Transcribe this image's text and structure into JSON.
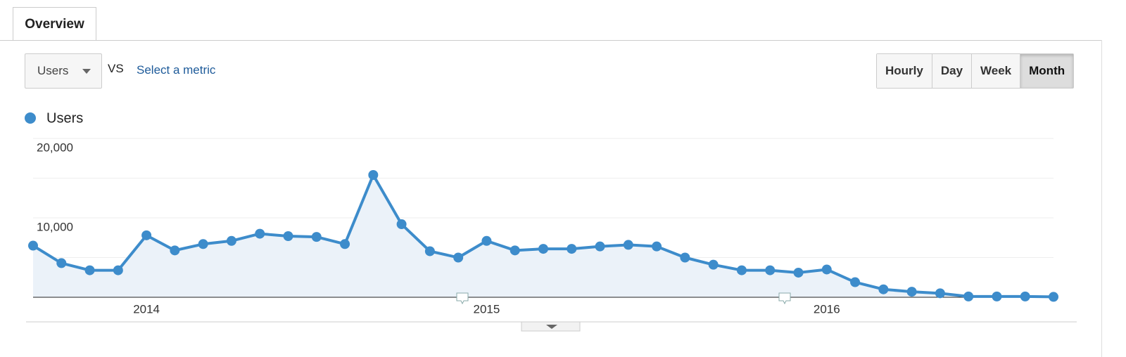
{
  "tabs": [
    "Overview"
  ],
  "metric_select": "Users",
  "vs_text": "VS",
  "select_metric": "Select a metric",
  "granularity": [
    "Hourly",
    "Day",
    "Week",
    "Month"
  ],
  "active_granularity_index": 3,
  "chart_data": {
    "type": "line",
    "categories": [
      null,
      null,
      null,
      null,
      "2014",
      null,
      null,
      null,
      null,
      null,
      null,
      null,
      null,
      null,
      null,
      null,
      "2015",
      null,
      null,
      null,
      null,
      null,
      null,
      null,
      null,
      null,
      null,
      null,
      "2016",
      null,
      null,
      null,
      null,
      null,
      null,
      null,
      null
    ],
    "series": [
      {
        "name": "Users",
        "color": "#3d8ccb",
        "values": [
          6500,
          4300,
          3400,
          3400,
          7800,
          5900,
          6700,
          7100,
          8000,
          7700,
          7600,
          6700,
          15400,
          9200,
          5800,
          5000,
          7100,
          5900,
          6100,
          6100,
          6400,
          6600,
          6400,
          5000,
          4100,
          3400,
          3400,
          3100,
          3500,
          1900,
          1000,
          700,
          500,
          100,
          100,
          100,
          50
        ]
      }
    ],
    "ylim": [
      0,
      20000
    ],
    "yticks": [
      {
        "value": 10000,
        "label": "10,000"
      },
      {
        "value": 20000,
        "label": "20,000"
      }
    ],
    "minor_yticks": [
      5000,
      15000
    ],
    "grid": true,
    "area_fill": "#ebf2f9"
  }
}
